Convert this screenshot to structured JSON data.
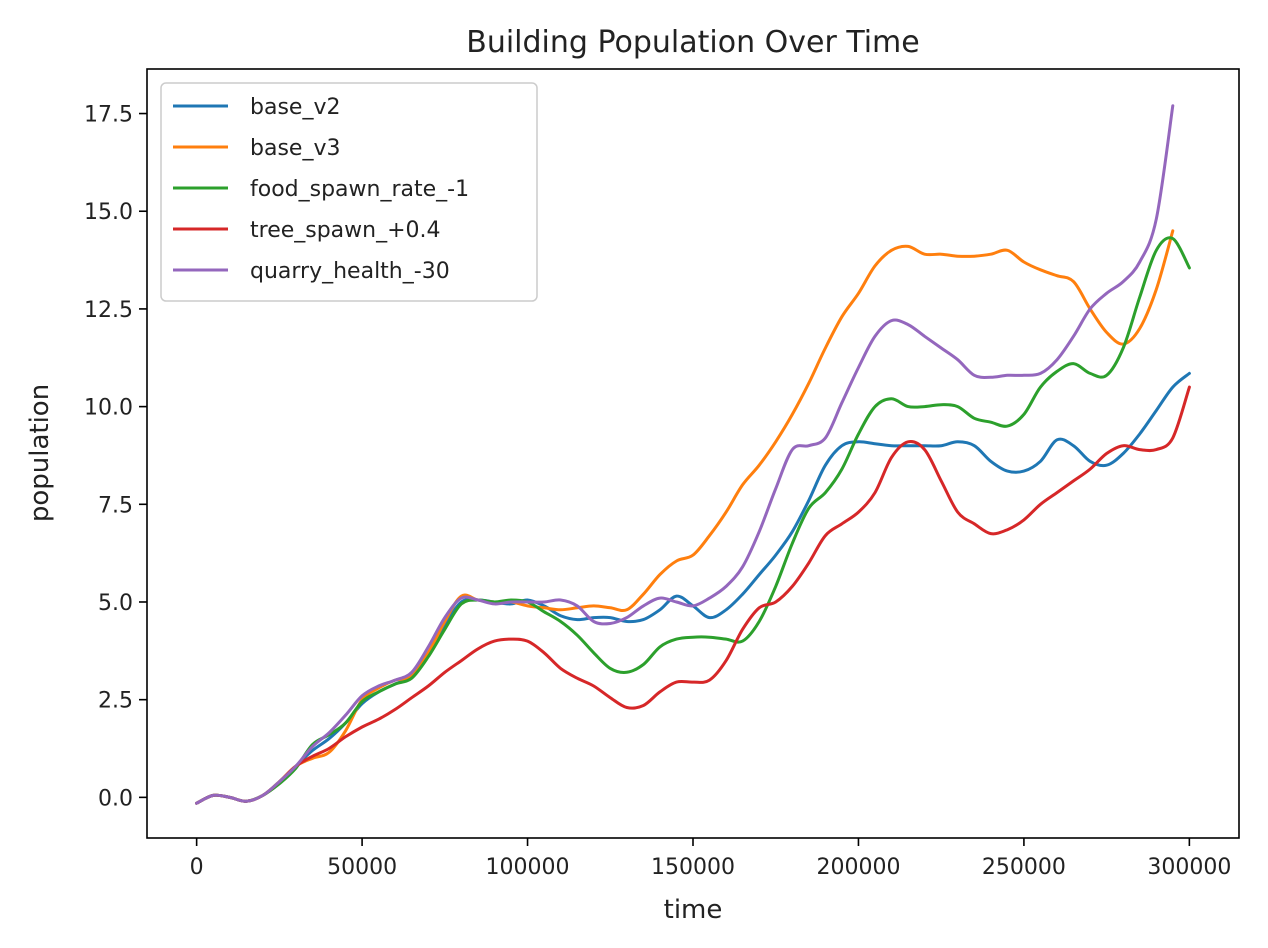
{
  "chart_data": {
    "type": "line",
    "title": "Building Population Over Time",
    "xlabel": "time",
    "ylabel": "population",
    "xlim": [
      -15000,
      315000
    ],
    "ylim": [
      -1.04,
      18.64
    ],
    "xticks": [
      0,
      50000,
      100000,
      150000,
      200000,
      250000,
      300000
    ],
    "xtick_labels": [
      "0",
      "50000",
      "100000",
      "150000",
      "200000",
      "250000",
      "300000"
    ],
    "yticks": [
      0,
      2.5,
      5,
      7.5,
      10,
      12.5,
      15,
      17.5
    ],
    "ytick_labels": [
      "0.0",
      "2.5",
      "5.0",
      "7.5",
      "10.0",
      "12.5",
      "15.0",
      "17.5"
    ],
    "grid": false,
    "legend_position": "top-left",
    "series": [
      {
        "name": "base_v2",
        "color": "#1f77b4",
        "x": [
          0,
          5000,
          10000,
          15000,
          20000,
          25000,
          30000,
          35000,
          40000,
          45000,
          50000,
          55000,
          60000,
          65000,
          70000,
          75000,
          80000,
          85000,
          90000,
          95000,
          100000,
          105000,
          110000,
          115000,
          120000,
          125000,
          130000,
          135000,
          140000,
          145000,
          150000,
          155000,
          160000,
          165000,
          170000,
          175000,
          180000,
          185000,
          190000,
          195000,
          200000,
          205000,
          210000,
          215000,
          220000,
          225000,
          230000,
          235000,
          240000,
          245000,
          250000,
          255000,
          260000,
          265000,
          270000,
          275000,
          280000,
          285000,
          290000,
          295000,
          300000
        ],
        "y": [
          -0.15,
          0.05,
          0.0,
          -0.1,
          0.05,
          0.4,
          0.8,
          1.2,
          1.5,
          1.9,
          2.4,
          2.7,
          2.9,
          3.1,
          3.7,
          4.4,
          5.0,
          5.05,
          5.0,
          4.95,
          5.05,
          4.9,
          4.65,
          4.55,
          4.6,
          4.6,
          4.5,
          4.55,
          4.8,
          5.15,
          4.9,
          4.6,
          4.8,
          5.2,
          5.7,
          6.2,
          6.8,
          7.6,
          8.5,
          9.0,
          9.1,
          9.05,
          9.0,
          9.0,
          9.0,
          9.0,
          9.1,
          9.0,
          8.6,
          8.35,
          8.35,
          8.6,
          9.15,
          9.0,
          8.6,
          8.5,
          8.8,
          9.3,
          9.9,
          10.5,
          10.85
        ]
      },
      {
        "name": "base_v3",
        "color": "#ff7f0e",
        "x": [
          0,
          5000,
          10000,
          15000,
          20000,
          25000,
          30000,
          35000,
          40000,
          45000,
          50000,
          55000,
          60000,
          65000,
          70000,
          75000,
          80000,
          85000,
          90000,
          95000,
          100000,
          105000,
          110000,
          115000,
          120000,
          125000,
          130000,
          135000,
          140000,
          145000,
          150000,
          155000,
          160000,
          165000,
          170000,
          175000,
          180000,
          185000,
          190000,
          195000,
          200000,
          205000,
          210000,
          215000,
          220000,
          225000,
          230000,
          235000,
          240000,
          245000,
          250000,
          255000,
          260000,
          265000,
          270000,
          275000,
          280000,
          285000,
          290000,
          295000
        ],
        "y": [
          -0.15,
          0.05,
          0.0,
          -0.1,
          0.05,
          0.4,
          0.8,
          1.0,
          1.15,
          1.7,
          2.5,
          2.8,
          3.0,
          3.1,
          3.7,
          4.5,
          5.15,
          5.05,
          5.0,
          5.0,
          4.9,
          4.85,
          4.8,
          4.85,
          4.9,
          4.85,
          4.8,
          5.2,
          5.7,
          6.05,
          6.2,
          6.7,
          7.3,
          8.0,
          8.5,
          9.1,
          9.8,
          10.6,
          11.5,
          12.3,
          12.9,
          13.6,
          14.0,
          14.1,
          13.9,
          13.9,
          13.85,
          13.85,
          13.9,
          14.0,
          13.7,
          13.5,
          13.35,
          13.2,
          12.5,
          11.9,
          11.6,
          12.0,
          13.0,
          14.5
        ]
      },
      {
        "name": "food_spawn_rate_-1",
        "color": "#2ca02c",
        "x": [
          0,
          5000,
          10000,
          15000,
          20000,
          25000,
          30000,
          35000,
          40000,
          45000,
          50000,
          55000,
          60000,
          65000,
          70000,
          75000,
          80000,
          85000,
          90000,
          95000,
          100000,
          105000,
          110000,
          115000,
          120000,
          125000,
          130000,
          135000,
          140000,
          145000,
          150000,
          155000,
          160000,
          165000,
          170000,
          175000,
          180000,
          185000,
          190000,
          195000,
          200000,
          205000,
          210000,
          215000,
          220000,
          225000,
          230000,
          235000,
          240000,
          245000,
          250000,
          255000,
          260000,
          265000,
          270000,
          275000,
          280000,
          285000,
          290000,
          295000,
          300000
        ],
        "y": [
          -0.15,
          0.05,
          0.0,
          -0.1,
          0.05,
          0.35,
          0.75,
          1.35,
          1.6,
          1.9,
          2.45,
          2.7,
          2.9,
          3.05,
          3.6,
          4.3,
          4.95,
          5.05,
          5.0,
          5.05,
          5.0,
          4.75,
          4.5,
          4.15,
          3.7,
          3.3,
          3.2,
          3.4,
          3.85,
          4.05,
          4.1,
          4.1,
          4.05,
          4.0,
          4.5,
          5.4,
          6.5,
          7.4,
          7.8,
          8.4,
          9.3,
          10.0,
          10.2,
          10.0,
          10.0,
          10.05,
          10.0,
          9.7,
          9.6,
          9.5,
          9.8,
          10.5,
          10.9,
          11.1,
          10.85,
          10.8,
          11.5,
          12.8,
          14.0,
          14.3,
          13.55
        ]
      },
      {
        "name": "tree_spawn_+0.4",
        "color": "#d62728",
        "x": [
          0,
          5000,
          10000,
          15000,
          20000,
          25000,
          30000,
          35000,
          40000,
          45000,
          50000,
          55000,
          60000,
          65000,
          70000,
          75000,
          80000,
          85000,
          90000,
          95000,
          100000,
          105000,
          110000,
          115000,
          120000,
          125000,
          130000,
          135000,
          140000,
          145000,
          150000,
          155000,
          160000,
          165000,
          170000,
          175000,
          180000,
          185000,
          190000,
          195000,
          200000,
          205000,
          210000,
          215000,
          220000,
          225000,
          230000,
          235000,
          240000,
          245000,
          250000,
          255000,
          260000,
          265000,
          270000,
          275000,
          280000,
          285000,
          290000,
          295000,
          300000
        ],
        "y": [
          -0.15,
          0.05,
          0.0,
          -0.1,
          0.05,
          0.4,
          0.8,
          1.05,
          1.25,
          1.55,
          1.8,
          2.0,
          2.25,
          2.55,
          2.85,
          3.2,
          3.5,
          3.8,
          4.0,
          4.05,
          4.0,
          3.7,
          3.3,
          3.05,
          2.85,
          2.55,
          2.3,
          2.35,
          2.7,
          2.95,
          2.95,
          3.0,
          3.5,
          4.3,
          4.85,
          5.0,
          5.4,
          6.0,
          6.7,
          7.0,
          7.3,
          7.8,
          8.7,
          9.1,
          8.9,
          8.1,
          7.3,
          7.0,
          6.75,
          6.85,
          7.1,
          7.5,
          7.8,
          8.1,
          8.4,
          8.8,
          9.0,
          8.9,
          8.9,
          9.2,
          10.5
        ]
      },
      {
        "name": "quarry_health_-30",
        "color": "#9467bd",
        "x": [
          0,
          5000,
          10000,
          15000,
          20000,
          25000,
          30000,
          35000,
          40000,
          45000,
          50000,
          55000,
          60000,
          65000,
          70000,
          75000,
          80000,
          85000,
          90000,
          95000,
          100000,
          105000,
          110000,
          115000,
          120000,
          125000,
          130000,
          135000,
          140000,
          145000,
          150000,
          155000,
          160000,
          165000,
          170000,
          175000,
          180000,
          185000,
          190000,
          195000,
          200000,
          205000,
          210000,
          215000,
          220000,
          225000,
          230000,
          235000,
          240000,
          245000,
          250000,
          255000,
          260000,
          265000,
          270000,
          275000,
          280000,
          285000,
          290000,
          295000
        ],
        "y": [
          -0.15,
          0.05,
          0.0,
          -0.1,
          0.05,
          0.4,
          0.8,
          1.3,
          1.65,
          2.1,
          2.6,
          2.85,
          3.0,
          3.2,
          3.85,
          4.6,
          5.1,
          5.05,
          4.95,
          5.0,
          5.0,
          5.0,
          5.05,
          4.9,
          4.5,
          4.45,
          4.6,
          4.9,
          5.1,
          5.0,
          4.9,
          5.1,
          5.4,
          5.9,
          6.8,
          7.9,
          8.9,
          9.0,
          9.2,
          10.1,
          11.0,
          11.8,
          12.2,
          12.1,
          11.8,
          11.5,
          11.2,
          10.8,
          10.75,
          10.8,
          10.8,
          10.85,
          11.2,
          11.8,
          12.5,
          12.9,
          13.2,
          13.7,
          14.8,
          17.7
        ]
      }
    ]
  }
}
